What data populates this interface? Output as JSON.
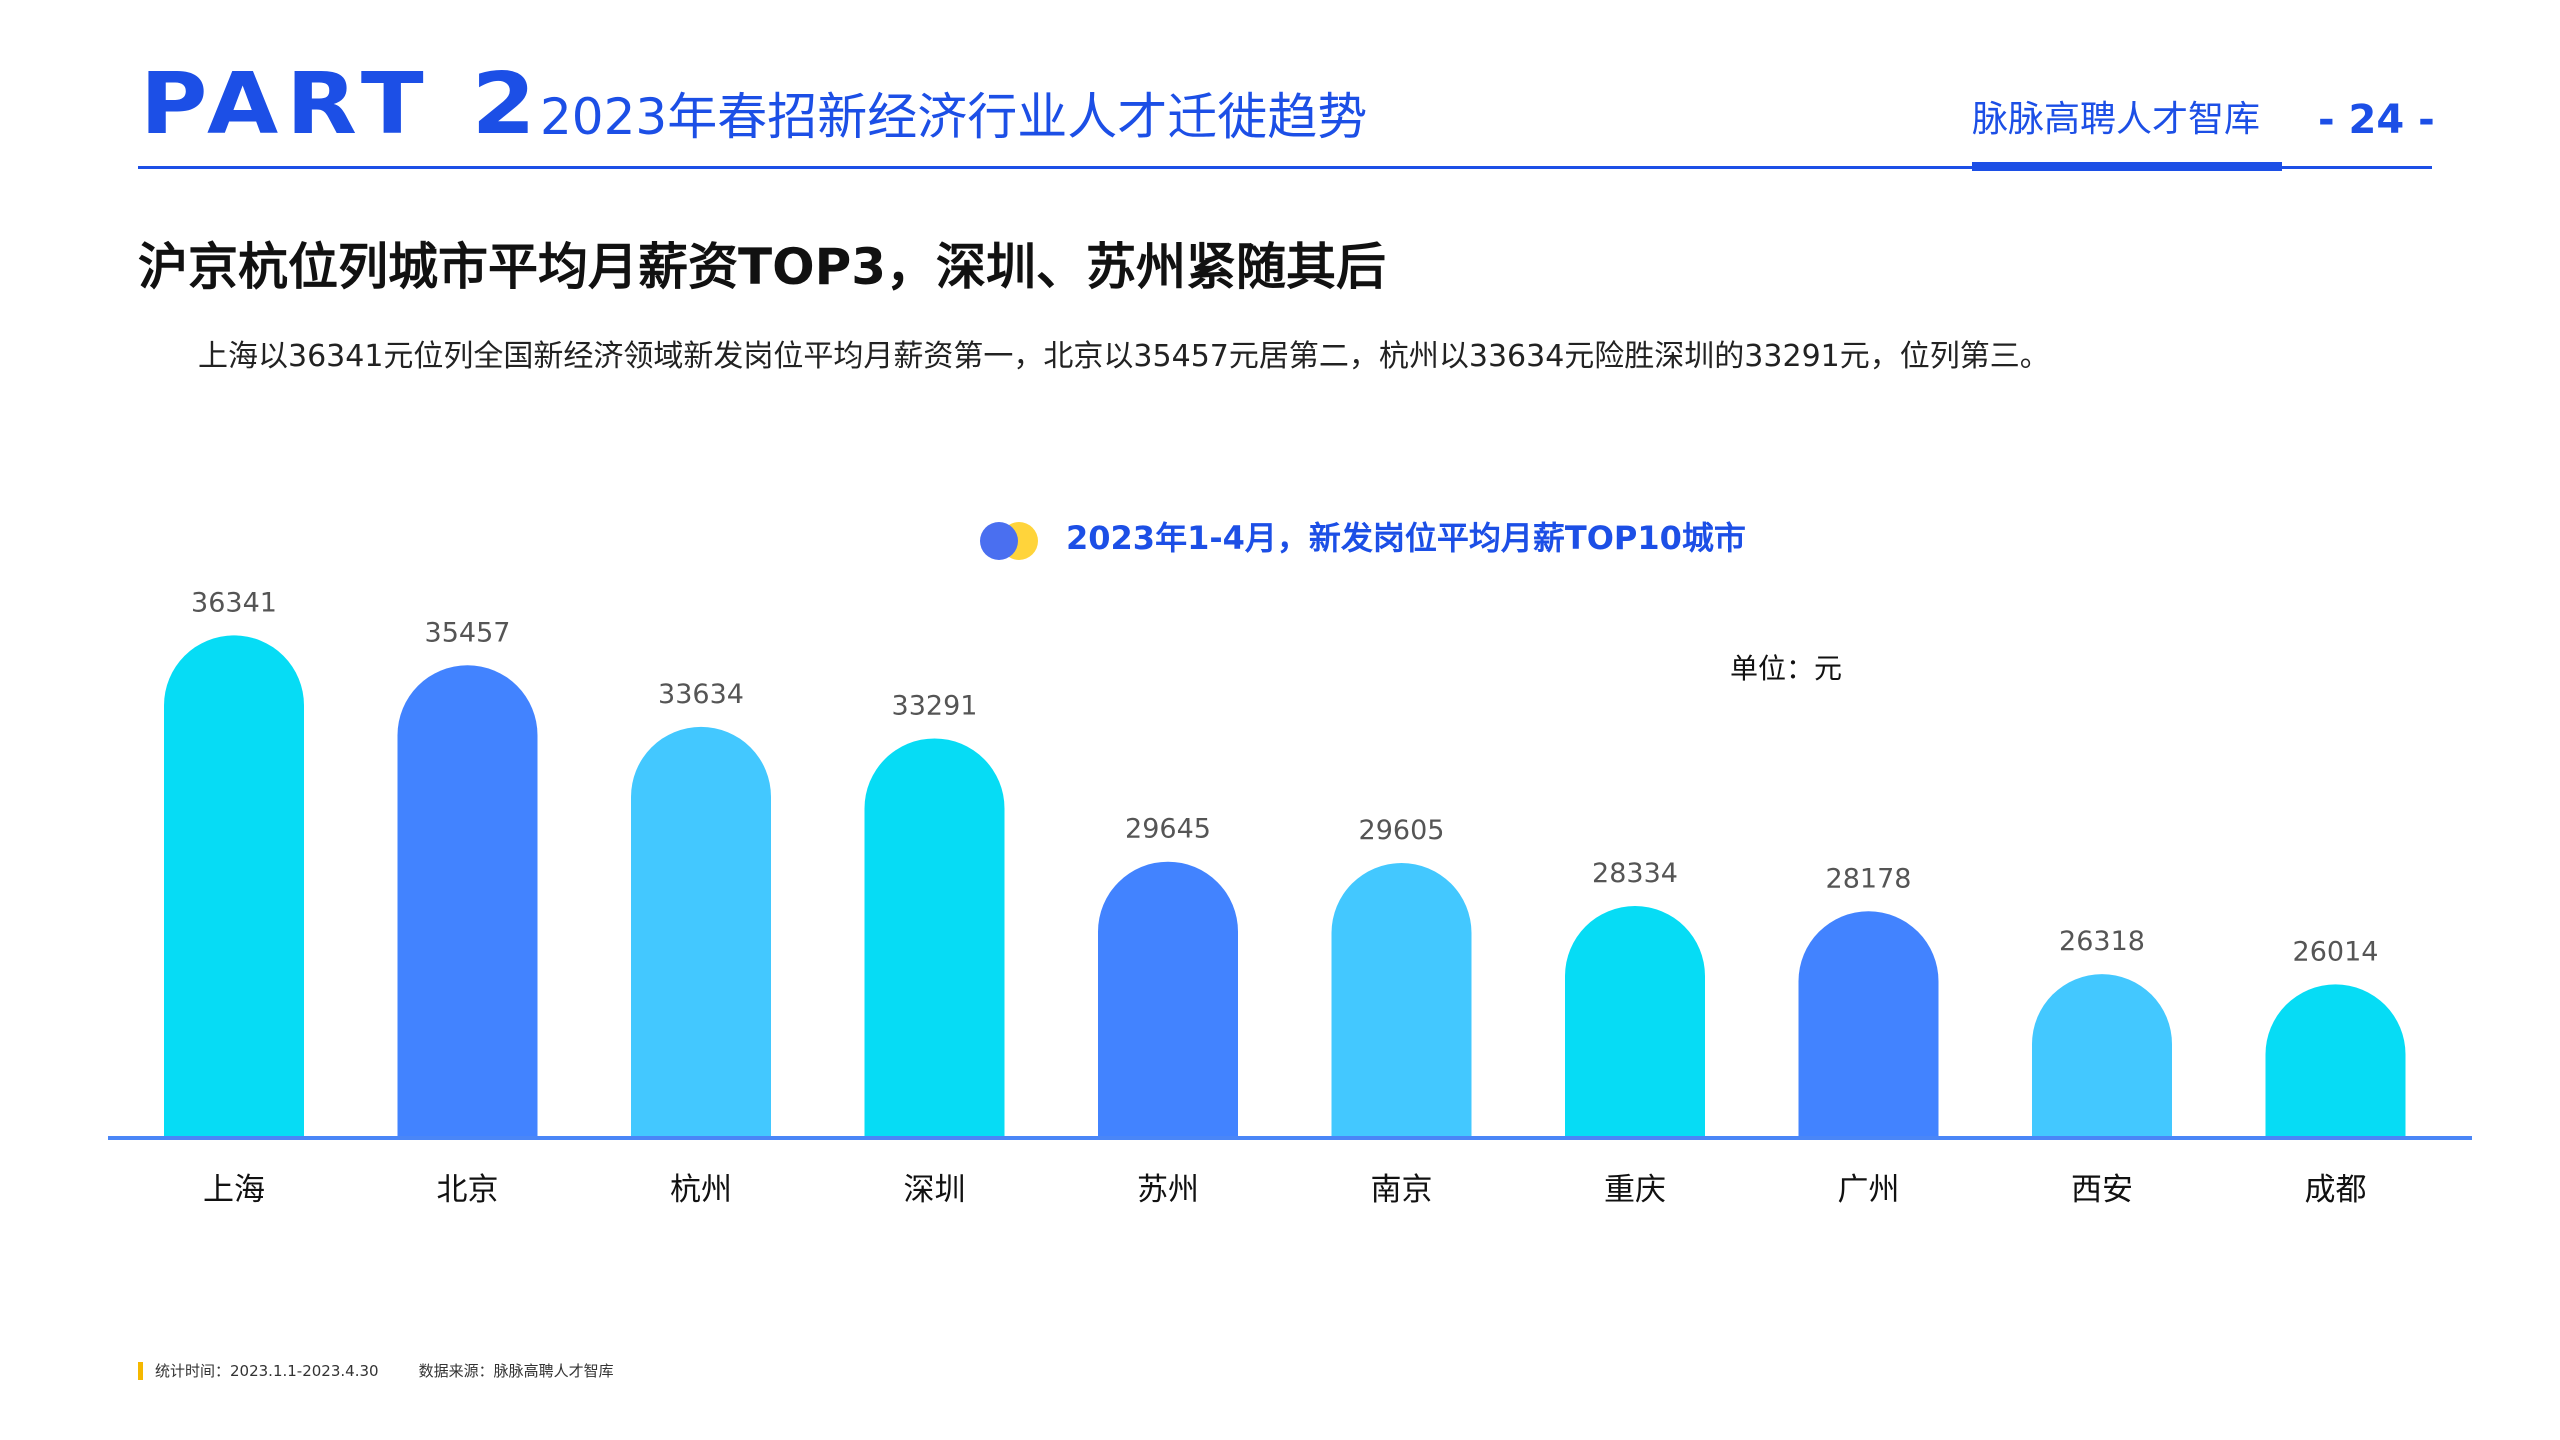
{
  "header": {
    "part": "PART 2",
    "title": "2023年春招新经济行业人才迁徙趋势",
    "brand": "脉脉高聘人才智库",
    "page": "- 24 -"
  },
  "headline": "沪京杭位列城市平均月薪资TOP3，深圳、苏州紧随其后",
  "summary": "上海以36341元位列全国新经济领域新发岗位平均月薪资第一，北京以35457元居第二，杭州以33634元险胜深圳的33291元，位列第三。",
  "chart_data": {
    "type": "bar",
    "title": "2023年1-4月，新发岗位平均月薪TOP10城市",
    "unit_label": "单位：元",
    "xlabel": "",
    "ylabel": "",
    "categories": [
      "上海",
      "北京",
      "杭州",
      "深圳",
      "苏州",
      "南京",
      "重庆",
      "广州",
      "西安",
      "成都"
    ],
    "values": [
      36341,
      35457,
      33634,
      33291,
      29645,
      29605,
      28334,
      28178,
      26318,
      26014
    ],
    "colors": [
      "#06dcf5",
      "#4283ff",
      "#43c8ff",
      "#06dcf5",
      "#4283ff",
      "#43c8ff",
      "#06dcf5",
      "#4283ff",
      "#43c8ff",
      "#06dcf5"
    ],
    "axis_color": "#4a86f7",
    "grid": false,
    "legend": "none"
  },
  "footer": {
    "stats_time": "统计时间：2023.1.1-2023.4.30",
    "source": "数据来源：脉脉高聘人才智库"
  },
  "colors": {
    "brand_blue": "#1c4fe6",
    "accent_yellow": "#ffd43b"
  }
}
